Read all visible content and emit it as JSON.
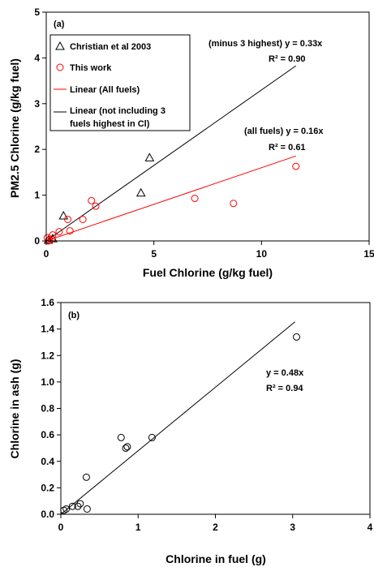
{
  "chart_data": [
    {
      "type": "scatter",
      "panel_label": "(a)",
      "xlabel": "Fuel Chlorine (g/kg fuel)",
      "ylabel": "PM2.5 Chlorine (g/kg fuel)",
      "xlim": [
        0,
        15
      ],
      "ylim": [
        0,
        5
      ],
      "xticks": [
        "0",
        "5",
        "10",
        "15"
      ],
      "yticks": [
        "0",
        "1",
        "2",
        "3",
        "4",
        "5"
      ],
      "series": [
        {
          "name": "Christian et al 2003",
          "marker": "triangle",
          "color": "#000000",
          "points": [
            [
              0.1,
              0.02
            ],
            [
              0.3,
              0.05
            ],
            [
              0.8,
              0.55
            ],
            [
              4.4,
              1.05
            ],
            [
              4.8,
              1.82
            ]
          ]
        },
        {
          "name": "This work",
          "marker": "circle",
          "color": "#ff0000",
          "points": [
            [
              0.05,
              0.07
            ],
            [
              0.1,
              0.0
            ],
            [
              0.15,
              0.02
            ],
            [
              0.25,
              0.04
            ],
            [
              0.3,
              0.13
            ],
            [
              0.6,
              0.2
            ],
            [
              1.0,
              0.47
            ],
            [
              1.1,
              0.22
            ],
            [
              1.7,
              0.47
            ],
            [
              2.1,
              0.88
            ],
            [
              2.3,
              0.76
            ],
            [
              6.9,
              0.93
            ],
            [
              8.7,
              0.82
            ],
            [
              11.6,
              1.63
            ]
          ]
        }
      ],
      "fits": [
        {
          "name": "Linear (All fuels)",
          "color": "#ff0000",
          "slope": 0.16,
          "x_range": [
            0,
            11.6
          ]
        },
        {
          "name": "Linear (not including 3 fuels highest in Cl)",
          "color": "#000000",
          "slope": 0.33,
          "x_range": [
            0,
            11.6
          ]
        }
      ],
      "legend": {
        "position": "top-left",
        "entries": [
          {
            "label": "Christian et al 2003",
            "kind": "triangle",
            "color": "#000000"
          },
          {
            "label": "This work",
            "kind": "circle",
            "color": "#ff0000"
          },
          {
            "label": "Linear (All fuels)",
            "kind": "line",
            "color": "#ff0000"
          },
          {
            "label_line1": "Linear (not including 3",
            "label_line2": "fuels highest in Cl)",
            "kind": "line",
            "color": "#000000"
          }
        ]
      },
      "annotations": {
        "black_eq": "(minus 3 highest) y = 0.33x",
        "black_r2": "R² = 0.90",
        "red_eq": "(all fuels) y = 0.16x",
        "red_r2": "R² = 0.61"
      }
    },
    {
      "type": "scatter",
      "panel_label": "(b)",
      "xlabel": "Chlorine in fuel (g)",
      "ylabel": "Chlorine in ash (g)",
      "xlim": [
        0,
        4
      ],
      "ylim": [
        0,
        1.6
      ],
      "xticks": [
        "0",
        "1",
        "2",
        "3",
        "4"
      ],
      "yticks": [
        "0.0",
        "0.2",
        "0.4",
        "0.6",
        "0.8",
        "1.0",
        "1.2",
        "1.4",
        "1.6"
      ],
      "series": [
        {
          "name": "",
          "marker": "circle",
          "color": "#000000",
          "points": [
            [
              0.04,
              0.03
            ],
            [
              0.07,
              0.04
            ],
            [
              0.15,
              0.06
            ],
            [
              0.22,
              0.06
            ],
            [
              0.25,
              0.08
            ],
            [
              0.33,
              0.28
            ],
            [
              0.34,
              0.04
            ],
            [
              0.78,
              0.58
            ],
            [
              0.84,
              0.5
            ],
            [
              0.86,
              0.51
            ],
            [
              1.18,
              0.58
            ],
            [
              3.05,
              1.34
            ]
          ]
        }
      ],
      "fits": [
        {
          "name": "",
          "color": "#000000",
          "slope": 0.48,
          "x_range": [
            0,
            3.03
          ]
        }
      ],
      "annotations": {
        "eq": "y = 0.48x",
        "r2": "R² = 0.94"
      }
    }
  ]
}
